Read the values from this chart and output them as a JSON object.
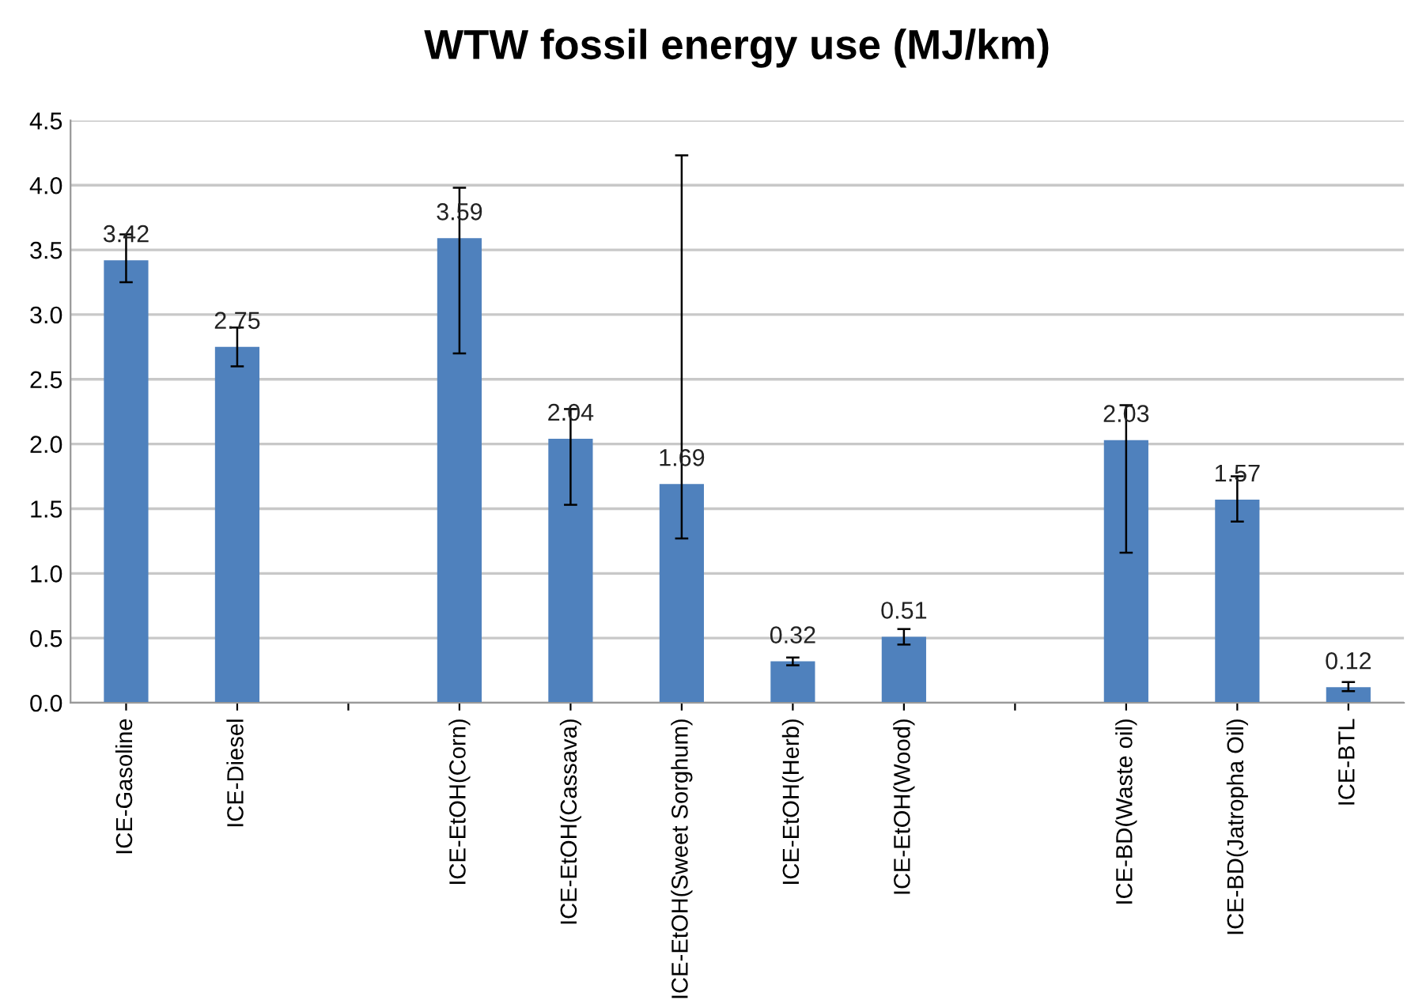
{
  "chart_data": {
    "type": "bar",
    "title": "WTW fossil energy use (MJ/km)",
    "categories": [
      "ICE-Gasoline",
      "ICE-Diesel",
      null,
      "ICE-EtOH(Corn)",
      "ICE-EtOH(Cassava)",
      "ICE-EtOH(Sweet Sorghum)",
      "ICE-EtOH(Herb)",
      "ICE-EtOH(Wood)",
      null,
      "ICE-BD(Waste oil)",
      "ICE-BD(Jatropha Oil)",
      "ICE-BTL"
    ],
    "values": [
      3.42,
      2.75,
      null,
      3.59,
      2.04,
      1.69,
      0.32,
      0.51,
      null,
      2.03,
      1.57,
      0.12
    ],
    "errors": [
      [
        3.25,
        3.62
      ],
      [
        2.6,
        2.9
      ],
      null,
      [
        2.7,
        3.98
      ],
      [
        1.53,
        2.27
      ],
      [
        1.27,
        4.23
      ],
      [
        0.29,
        0.35
      ],
      [
        0.45,
        0.57
      ],
      null,
      [
        1.16,
        2.3
      ],
      [
        1.4,
        1.75
      ],
      [
        0.09,
        0.16
      ]
    ],
    "color": "#4f81bd",
    "data_labels": true,
    "ylim": [
      0,
      4.5
    ],
    "yticks": [
      {
        "value": 0,
        "label": "0.0"
      },
      {
        "value": 0.5,
        "label": "0.5"
      },
      {
        "value": 1,
        "label": "1.0"
      },
      {
        "value": 1.5,
        "label": "1.5"
      },
      {
        "value": 2,
        "label": "2.0"
      },
      {
        "value": 2.5,
        "label": "2.5"
      },
      {
        "value": 3,
        "label": "3.0"
      },
      {
        "value": 3.5,
        "label": "3.5"
      },
      {
        "value": 4,
        "label": "4.0"
      },
      {
        "value": 4.5,
        "label": "4.5"
      }
    ],
    "grid": "y"
  }
}
